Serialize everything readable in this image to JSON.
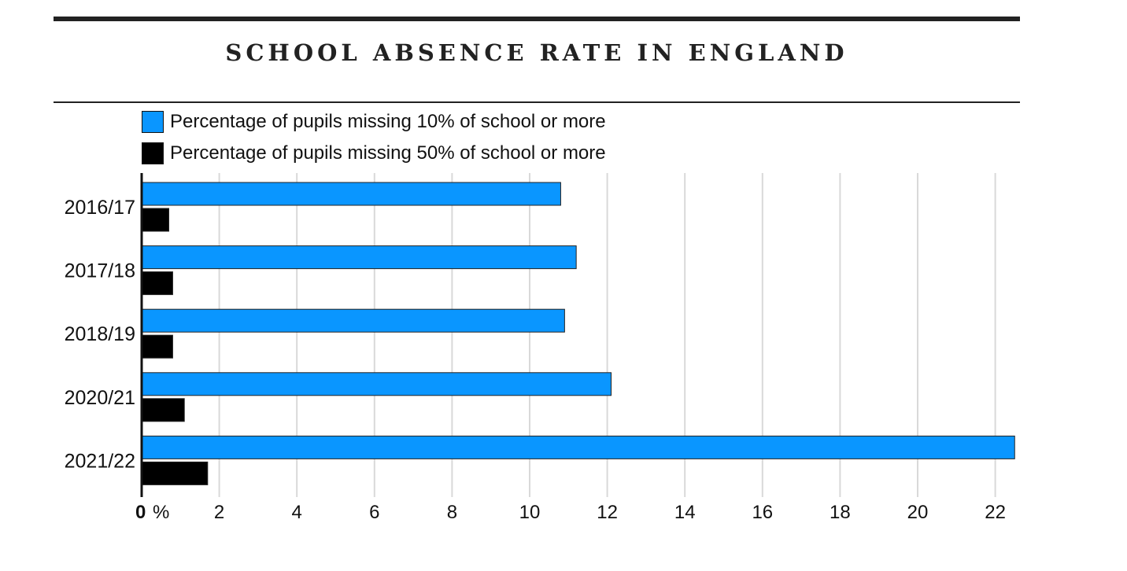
{
  "chart_data": {
    "type": "bar",
    "orientation": "horizontal",
    "title": "SCHOOL ABSENCE RATE IN ENGLAND",
    "categories": [
      "2016/17",
      "2017/18",
      "2018/19",
      "2020/21",
      "2021/22"
    ],
    "series": [
      {
        "name": "Percentage of pupils missing 10% of school or more",
        "color": "#0a96ff",
        "values": [
          10.8,
          11.2,
          10.9,
          12.1,
          22.5
        ]
      },
      {
        "name": "Percentage of pupils missing 50% of school or more",
        "color": "#000000",
        "values": [
          0.7,
          0.8,
          0.8,
          1.1,
          1.7
        ]
      }
    ],
    "xlim": [
      0,
      22.5
    ],
    "xticks": [
      0,
      2,
      4,
      6,
      8,
      10,
      12,
      14,
      16,
      18,
      20,
      22
    ],
    "unit_label": "%",
    "grid": true,
    "legend_position": "top-left"
  }
}
